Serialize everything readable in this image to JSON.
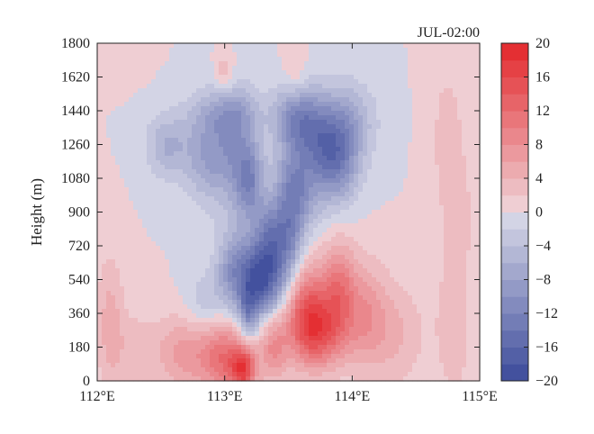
{
  "chart_data": {
    "type": "heatmap",
    "title": "JUL-02:00",
    "ylabel": "Height (m)",
    "xlabel": "",
    "xlim": [
      112,
      115
    ],
    "ylim": [
      0,
      1800
    ],
    "x_ticks": [
      112,
      113,
      114,
      115
    ],
    "x_tick_labels": [
      "112°E",
      "113°E",
      "114°E",
      "115°E"
    ],
    "y_ticks": [
      0,
      180,
      360,
      540,
      720,
      900,
      1080,
      1260,
      1440,
      1620,
      1800
    ],
    "y_tick_labels": [
      "0",
      "180",
      "360",
      "540",
      "720",
      "900",
      "1080",
      "1260",
      "1440",
      "1620",
      "1800"
    ],
    "colorbar": {
      "range": [
        -20,
        20
      ],
      "ticks": [
        20,
        16,
        12,
        8,
        4,
        0,
        -4,
        -8,
        -12,
        -16,
        -20
      ],
      "tick_labels": [
        "20",
        "16",
        "12",
        "8",
        "4",
        "0",
        "−4",
        "−8",
        "−12",
        "−16",
        "−20"
      ],
      "levels": [
        -20,
        -18,
        -16,
        -14,
        -12,
        -10,
        -8,
        -6,
        -4,
        -2,
        0,
        2,
        4,
        6,
        8,
        10,
        12,
        14,
        16,
        18,
        20
      ],
      "neg_color": "#3b4a9a",
      "zero_color": "#f1eff4",
      "pos_color": "#e3262a"
    },
    "features": [
      {
        "x": 112.55,
        "y": 1250,
        "sx": 0.12,
        "sy": 120,
        "value": -6
      },
      {
        "x": 112.85,
        "y": 1200,
        "sx": 0.12,
        "sy": 170,
        "value": -7
      },
      {
        "x": 113.08,
        "y": 1230,
        "sx": 0.12,
        "sy": 220,
        "value": -8
      },
      {
        "x": 113.2,
        "y": 1050,
        "sx": 0.08,
        "sy": 150,
        "value": -9
      },
      {
        "x": 113.02,
        "y": 1430,
        "sx": 0.2,
        "sy": 90,
        "value": -5
      },
      {
        "x": 113.08,
        "y": 580,
        "sx": 0.1,
        "sy": 150,
        "value": -10
      },
      {
        "x": 113.26,
        "y": 540,
        "sx": 0.09,
        "sy": 140,
        "value": -14
      },
      {
        "x": 113.4,
        "y": 580,
        "sx": 0.1,
        "sy": 160,
        "value": -10
      },
      {
        "x": 113.18,
        "y": 360,
        "sx": 0.05,
        "sy": 100,
        "value": -8
      },
      {
        "x": 113.35,
        "y": 800,
        "sx": 0.08,
        "sy": 120,
        "value": -7
      },
      {
        "x": 113.52,
        "y": 740,
        "sx": 0.08,
        "sy": 140,
        "value": -6
      },
      {
        "x": 113.5,
        "y": 1000,
        "sx": 0.09,
        "sy": 200,
        "value": -6
      },
      {
        "x": 113.55,
        "y": 1420,
        "sx": 0.12,
        "sy": 120,
        "value": -8
      },
      {
        "x": 113.7,
        "y": 1300,
        "sx": 0.14,
        "sy": 150,
        "value": -9
      },
      {
        "x": 113.88,
        "y": 1150,
        "sx": 0.12,
        "sy": 150,
        "value": -10
      },
      {
        "x": 113.95,
        "y": 1380,
        "sx": 0.16,
        "sy": 150,
        "value": -7
      },
      {
        "x": 113.6,
        "y": 1000,
        "sx": 0.12,
        "sy": 140,
        "value": -7
      },
      {
        "x": 112.85,
        "y": 400,
        "sx": 0.12,
        "sy": 120,
        "value": -4
      },
      {
        "x": 112.7,
        "y": 150,
        "sx": 0.18,
        "sy": 150,
        "value": 7
      },
      {
        "x": 113.0,
        "y": 120,
        "sx": 0.12,
        "sy": 150,
        "value": 10
      },
      {
        "x": 113.15,
        "y": 60,
        "sx": 0.07,
        "sy": 90,
        "value": 14
      },
      {
        "x": 113.38,
        "y": 180,
        "sx": 0.08,
        "sy": 130,
        "value": 8
      },
      {
        "x": 113.65,
        "y": 380,
        "sx": 0.13,
        "sy": 180,
        "value": 12
      },
      {
        "x": 113.75,
        "y": 250,
        "sx": 0.15,
        "sy": 130,
        "value": 10
      },
      {
        "x": 113.9,
        "y": 500,
        "sx": 0.09,
        "sy": 170,
        "value": 9
      },
      {
        "x": 114.1,
        "y": 350,
        "sx": 0.12,
        "sy": 200,
        "value": 7
      },
      {
        "x": 114.35,
        "y": 250,
        "sx": 0.15,
        "sy": 200,
        "value": 4
      },
      {
        "x": 114.8,
        "y": 300,
        "sx": 0.12,
        "sy": 350,
        "value": 3
      },
      {
        "x": 112.1,
        "y": 300,
        "sx": 0.08,
        "sy": 260,
        "value": 5
      },
      {
        "x": 112.3,
        "y": 150,
        "sx": 0.1,
        "sy": 150,
        "value": 3
      },
      {
        "x": 114.75,
        "y": 1300,
        "sx": 0.1,
        "sy": 300,
        "value": 3
      },
      {
        "x": 113.0,
        "y": 1640,
        "sx": 0.05,
        "sy": 80,
        "value": 4
      },
      {
        "x": 113.55,
        "y": 1620,
        "sx": 0.06,
        "sy": 110,
        "value": 3
      },
      {
        "x": 112.15,
        "y": 1720,
        "sx": 0.12,
        "sy": 80,
        "value": 2
      },
      {
        "x": 114.85,
        "y": 900,
        "sx": 0.08,
        "sy": 200,
        "value": 2
      }
    ]
  }
}
